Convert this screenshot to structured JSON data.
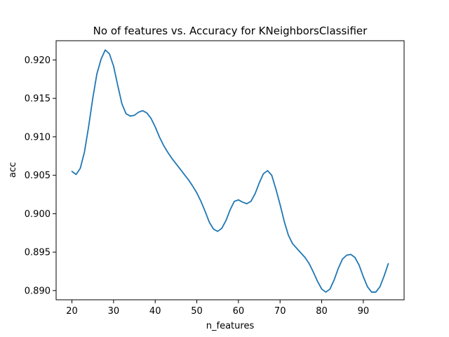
{
  "chart_data": {
    "type": "line",
    "title": "No of features vs. Accuracy for KNeighborsClassifier",
    "xlabel": "n_features",
    "ylabel": "acc",
    "xlim": [
      16.2,
      99.8
    ],
    "ylim": [
      0.8888,
      0.9225
    ],
    "xticks": [
      20,
      30,
      40,
      50,
      60,
      70,
      80,
      90
    ],
    "yticks": [
      0.89,
      0.895,
      0.9,
      0.905,
      0.91,
      0.915,
      0.92
    ],
    "ytick_labels": [
      "0.890",
      "0.895",
      "0.900",
      "0.905",
      "0.910",
      "0.915",
      "0.920"
    ],
    "grid": false,
    "series_color": "#1f77b4",
    "series": [
      {
        "x": [
          20,
          21,
          22,
          23,
          24,
          25,
          26,
          27,
          28,
          29,
          30,
          31,
          32,
          33,
          34,
          35,
          36,
          37,
          38,
          39,
          40,
          41,
          42,
          43,
          44,
          45,
          46,
          47,
          48,
          49,
          50,
          51,
          52,
          53,
          54,
          55,
          56,
          57,
          58,
          59,
          60,
          61,
          62,
          63,
          64,
          65,
          66,
          67,
          68,
          69,
          70,
          71,
          72,
          73,
          74,
          75,
          76,
          77,
          78,
          79,
          80,
          81,
          82,
          83,
          84,
          85,
          86,
          87,
          88,
          89,
          90,
          91,
          92,
          93,
          94,
          95,
          96
        ],
        "values": [
          0.9055,
          0.9051,
          0.9059,
          0.908,
          0.9113,
          0.915,
          0.9182,
          0.9201,
          0.9213,
          0.9208,
          0.9192,
          0.9167,
          0.9143,
          0.913,
          0.9127,
          0.9128,
          0.9132,
          0.9134,
          0.9131,
          0.9124,
          0.9113,
          0.91,
          0.9089,
          0.908,
          0.9072,
          0.9065,
          0.9058,
          0.9051,
          0.9044,
          0.9036,
          0.9027,
          0.9016,
          0.9003,
          0.8989,
          0.898,
          0.8977,
          0.8981,
          0.8991,
          0.9005,
          0.9016,
          0.9018,
          0.9015,
          0.9013,
          0.9016,
          0.9026,
          0.904,
          0.9052,
          0.9056,
          0.905,
          0.9032,
          0.9012,
          0.899,
          0.8972,
          0.8961,
          0.8955,
          0.8949,
          0.8943,
          0.8935,
          0.8924,
          0.8912,
          0.8902,
          0.8898,
          0.8902,
          0.8914,
          0.8929,
          0.8941,
          0.8946,
          0.8947,
          0.8943,
          0.8933,
          0.8918,
          0.8905,
          0.8898,
          0.8898,
          0.8905,
          0.8919,
          0.8935
        ]
      }
    ]
  }
}
